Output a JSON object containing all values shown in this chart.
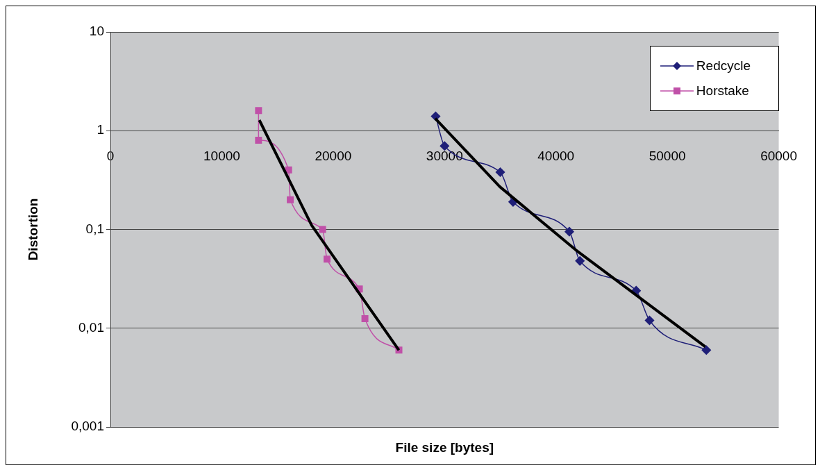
{
  "chart_data": {
    "type": "line",
    "xlabel": "File size [bytes]",
    "ylabel": "Distortion",
    "log": "y",
    "grid": "y",
    "legend": "top right",
    "xlim": [
      0,
      60000
    ],
    "xticks": [
      0,
      10000,
      20000,
      30000,
      40000,
      50000,
      60000
    ],
    "ylim": [
      0.001,
      10
    ],
    "yticks": [
      {
        "value": 0.001,
        "label": "0,001"
      },
      {
        "value": 0.01,
        "label": "0,01"
      },
      {
        "value": 0.1,
        "label": "0,1"
      },
      1,
      10
    ],
    "series": [
      {
        "name": "Redcycle",
        "color": "#1f1f78",
        "marker": "diamond",
        "x": [
          29200,
          30000,
          35000,
          36150,
          41200,
          42150,
          47200,
          48400,
          53500
        ],
        "values": [
          1.4,
          0.7,
          0.38,
          0.19,
          0.095,
          0.048,
          0.024,
          0.012,
          0.006
        ]
      },
      {
        "name": "Horstake",
        "color": "#c050a8",
        "marker": "square",
        "x": [
          13300,
          13300,
          16000,
          16150,
          19050,
          19450,
          22350,
          22850,
          25900
        ],
        "values": [
          1.6,
          0.8,
          0.4,
          0.2,
          0.1,
          0.05,
          0.025,
          0.0125,
          0.006
        ]
      },
      {
        "type": "line",
        "color": "#000000",
        "marker": "none",
        "x": [
          13370,
          18070,
          25900
        ],
        "values": [
          1.28,
          0.11,
          0.006
        ]
      },
      {
        "type": "line",
        "color": "#000000",
        "marker": "none",
        "x": [
          29160,
          34970,
          41780,
          53400
        ],
        "values": [
          1.33,
          0.27,
          0.062,
          0.0065
        ]
      }
    ]
  }
}
